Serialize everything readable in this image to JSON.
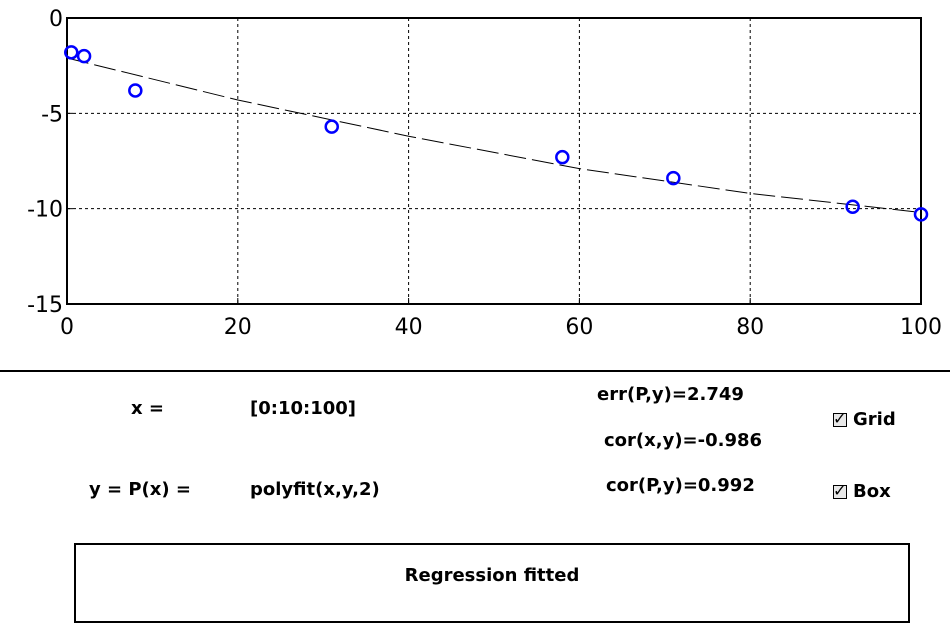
{
  "chart_data": {
    "type": "scatter",
    "xlim": [
      0,
      100
    ],
    "ylim": [
      -15,
      0
    ],
    "x_ticks": [
      "0",
      "20",
      "40",
      "60",
      "80",
      "100"
    ],
    "y_ticks": [
      "0",
      "-5",
      "-10",
      "-15"
    ],
    "grid": true,
    "box": true,
    "points": [
      {
        "x": 0.5,
        "y": -1.8
      },
      {
        "x": 2,
        "y": -2.0
      },
      {
        "x": 8,
        "y": -3.8
      },
      {
        "x": 31,
        "y": -5.7
      },
      {
        "x": 58,
        "y": -7.3
      },
      {
        "x": 71,
        "y": -8.4
      },
      {
        "x": 92,
        "y": -9.9
      },
      {
        "x": 100,
        "y": -10.3
      }
    ],
    "fit": {
      "x": [
        0,
        20,
        40,
        60,
        80,
        100
      ],
      "y": [
        -2.1,
        -4.3,
        -6.2,
        -7.9,
        -9.2,
        -10.2
      ]
    },
    "point_color": "#0000ff",
    "fit_color": "#000000"
  },
  "controls": {
    "x_label": "x =",
    "x_value": "[0:10:100]",
    "y_label": "y = P(x) =",
    "y_value": "polyfit(x,y,2)",
    "err": "err(P,y)=2.749",
    "cor_xy": "cor(x,y)=-0.986",
    "cor_py": "cor(P,y)=0.992",
    "grid_label": "Grid",
    "box_label": "Box",
    "grid_checked": true,
    "box_checked": true
  },
  "status": {
    "message": "Regression fitted"
  }
}
